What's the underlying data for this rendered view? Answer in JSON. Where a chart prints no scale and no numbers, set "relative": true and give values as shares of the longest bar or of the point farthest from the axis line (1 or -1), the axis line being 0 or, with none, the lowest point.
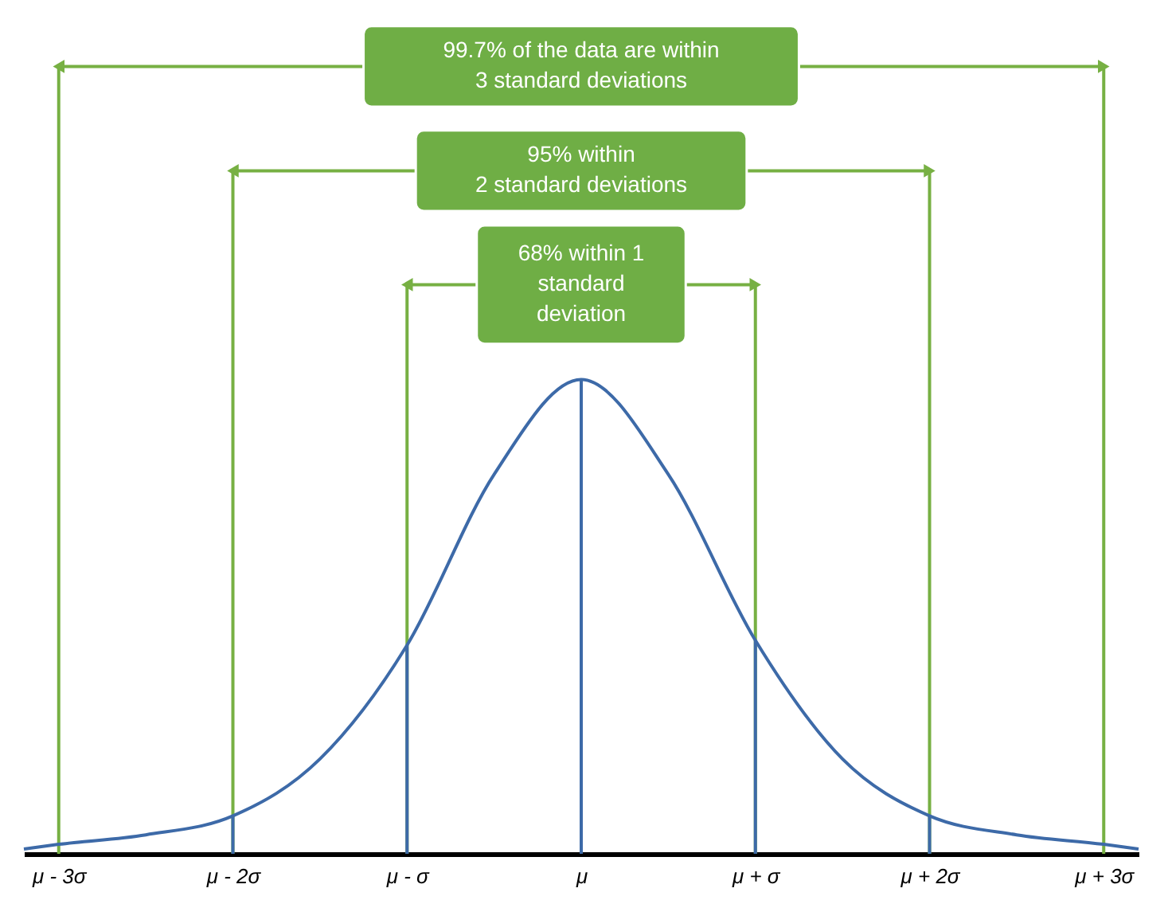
{
  "chart_data": {
    "type": "line",
    "relative": true,
    "xlim": [
      -3.2,
      3.2
    ],
    "xticks": [
      {
        "value": -3,
        "label": "μ - 3σ"
      },
      {
        "value": -2,
        "label": "μ - 2σ"
      },
      {
        "value": -1,
        "label": "μ - σ"
      },
      {
        "value": 0,
        "label": "μ"
      },
      {
        "value": 1,
        "label": "μ + σ"
      },
      {
        "value": 2,
        "label": "μ + 2σ"
      },
      {
        "value": 3,
        "label": "μ + 3σ"
      }
    ],
    "series": [
      {
        "color": "#3d6aa8",
        "x": [
          -3.2,
          -3,
          -2.5,
          -2,
          -1.5,
          -1,
          -0.5,
          0,
          0.5,
          1,
          1.5,
          2,
          2.5,
          3,
          3.2
        ],
        "values": [
          0.01,
          0.02,
          0.04,
          0.08,
          0.2,
          0.44,
          0.8,
          1,
          0.8,
          0.45,
          0.2,
          0.08,
          0.04,
          0.02,
          0.01
        ]
      },
      {
        "type": "bar",
        "color": "#3d6aa8",
        "x": [
          -2,
          -1,
          0,
          1,
          2
        ],
        "values": [
          0.08,
          0.44,
          1,
          0.45,
          0.08
        ]
      }
    ],
    "ref_lines": [
      {
        "axis": "x",
        "value": -3,
        "color": "#77b043"
      },
      {
        "axis": "x",
        "value": 3,
        "color": "#77b043"
      },
      {
        "axis": "x",
        "value": -2,
        "color": "#77b043"
      },
      {
        "axis": "x",
        "value": 2,
        "color": "#77b043"
      },
      {
        "axis": "x",
        "value": -1,
        "color": "#77b043"
      },
      {
        "axis": "x",
        "value": 1,
        "color": "#77b043"
      }
    ],
    "annotations": [
      "99.7% of the data are within\n3 standard deviations",
      "95% within\n2 standard deviations",
      "68% within 1\nstandard\ndeviation"
    ]
  }
}
